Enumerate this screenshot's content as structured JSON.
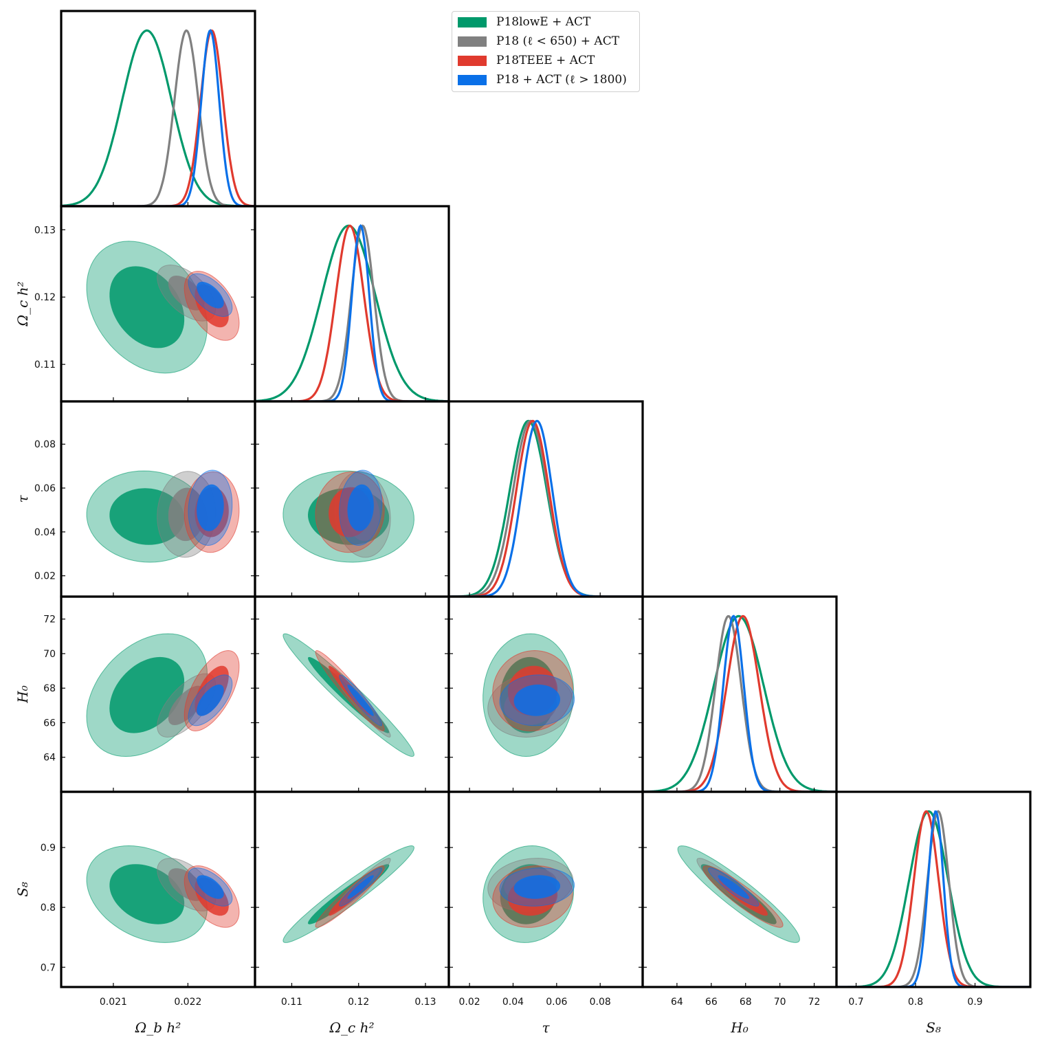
{
  "chart_data": {
    "type": "triangle-corner-plot",
    "parameters": [
      {
        "id": "ombh2",
        "label": "Ω_b h²",
        "range": [
          0.0203,
          0.0229
        ],
        "ticks": [
          0.021,
          0.022
        ],
        "tick_labels": [
          "0.021",
          "0.022"
        ]
      },
      {
        "id": "omch2",
        "label": "Ω_c h²",
        "range": [
          0.1045,
          0.1335
        ],
        "ticks": [
          0.11,
          0.12,
          0.13
        ],
        "tick_labels": [
          "0.11",
          "0.12",
          "0.13"
        ]
      },
      {
        "id": "tau",
        "label": "τ",
        "range": [
          0.0105,
          0.0995
        ],
        "ticks": [
          0.02,
          0.04,
          0.06,
          0.08
        ],
        "tick_labels": [
          "0.02",
          "0.04",
          "0.06",
          "0.08"
        ]
      },
      {
        "id": "H0",
        "label": "H₀",
        "range": [
          62.0,
          73.3
        ],
        "ticks": [
          64,
          66,
          68,
          70,
          72
        ],
        "tick_labels": [
          "64",
          "66",
          "68",
          "70",
          "72"
        ]
      },
      {
        "id": "S8",
        "label": "S₈",
        "range": [
          0.667,
          0.993
        ],
        "ticks": [
          0.7,
          0.8,
          0.9
        ],
        "tick_labels": [
          "0.7",
          "0.8",
          "0.9"
        ]
      }
    ],
    "series": [
      {
        "name": "P18lowE + ACT",
        "color": "#00996b",
        "mean": [
          0.02145,
          0.1185,
          0.047,
          67.6,
          0.822
        ],
        "sigma": [
          0.00033,
          0.004,
          0.0085,
          1.45,
          0.033
        ],
        "corr": {
          "0-1": -0.3,
          "0-2": -0.05,
          "0-3": 0.35,
          "0-4": -0.3,
          "1-2": -0.05,
          "1-3": -0.97,
          "1-4": 0.96,
          "2-3": 0.05,
          "2-4": 0.08,
          "3-4": -0.93
        }
      },
      {
        "name": "P18 (ℓ < 650) + ACT",
        "color": "#808080",
        "mean": [
          0.02198,
          0.1206,
          0.048,
          67.0,
          0.838
        ],
        "sigma": [
          0.00016,
          0.0017,
          0.008,
          0.75,
          0.018
        ],
        "corr": {
          "0-1": -0.55,
          "0-2": 0.05,
          "0-3": 0.65,
          "0-4": -0.55,
          "1-2": -0.1,
          "1-3": -0.96,
          "1-4": 0.95,
          "2-3": 0.1,
          "2-4": 0.15,
          "3-4": -0.92
        }
      },
      {
        "name": "P18TEEE + ACT",
        "color": "#e03a2e",
        "mean": [
          0.02232,
          0.1187,
          0.049,
          67.85,
          0.818
        ],
        "sigma": [
          0.00015,
          0.0021,
          0.0075,
          0.95,
          0.021
        ],
        "corr": {
          "0-1": -0.5,
          "0-2": 0.05,
          "0-3": 0.6,
          "0-4": -0.5,
          "1-2": 0.05,
          "1-3": -0.96,
          "1-4": 0.95,
          "2-3": 0.05,
          "2-4": 0.1,
          "3-4": -0.92
        }
      },
      {
        "name": "P18 + ACT (ℓ > 1800)",
        "color": "#0a70e8",
        "mean": [
          0.0223,
          0.1203,
          0.051,
          67.3,
          0.834
        ],
        "sigma": [
          0.00012,
          0.0013,
          0.007,
          0.6,
          0.013
        ],
        "corr": {
          "0-1": -0.6,
          "0-2": 0.1,
          "0-3": 0.65,
          "0-4": -0.6,
          "1-2": 0.1,
          "1-3": -0.95,
          "1-4": 0.94,
          "2-3": 0.05,
          "2-4": 0.1,
          "3-4": -0.92
        }
      }
    ],
    "legend": [
      "P18lowE + ACT",
      "P18 (ℓ < 650) + ACT",
      "P18TEEE + ACT",
      "P18 + ACT (ℓ > 1800)"
    ],
    "legend_position": "top-right",
    "contour_levels": [
      "68%",
      "95%"
    ]
  }
}
